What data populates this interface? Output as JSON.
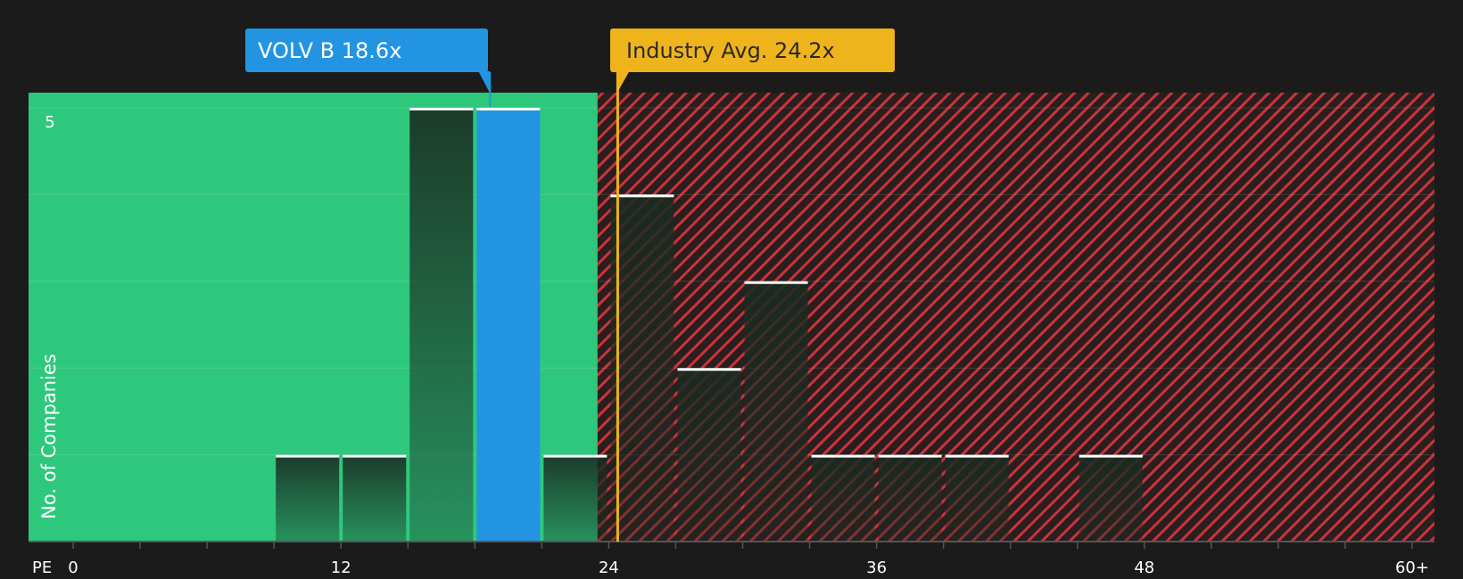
{
  "chart_data": {
    "type": "bar",
    "title": "",
    "xlabel": "PE",
    "ylabel": "No. of Companies",
    "xlim": [
      -2,
      61
    ],
    "ylim": [
      0,
      5
    ],
    "x_ticks": [
      {
        "value": 0,
        "label": "0"
      },
      {
        "value": 12,
        "label": "12"
      },
      {
        "value": 24,
        "label": "24"
      },
      {
        "value": 36,
        "label": "36"
      },
      {
        "value": 48,
        "label": "48"
      },
      {
        "value": 60,
        "label": "60+"
      }
    ],
    "y_ticks": [
      {
        "value": 5,
        "label": "5"
      }
    ],
    "bin_width": 3,
    "bins": [
      {
        "start": 9,
        "count": 1
      },
      {
        "start": 12,
        "count": 1
      },
      {
        "start": 15,
        "count": 5
      },
      {
        "start": 18,
        "count": 5,
        "highlight": true
      },
      {
        "start": 21,
        "count": 1
      },
      {
        "start": 24,
        "count": 4
      },
      {
        "start": 27,
        "count": 2
      },
      {
        "start": 30,
        "count": 3
      },
      {
        "start": 33,
        "count": 1
      },
      {
        "start": 36,
        "count": 1
      },
      {
        "start": 39,
        "count": 1
      },
      {
        "start": 45,
        "count": 1
      }
    ],
    "fair_zone_end": 23.5,
    "company": {
      "label": "VOLV B 18.6x",
      "value": 18.6
    },
    "industry": {
      "label": "Industry Avg. 24.2x",
      "value": 24.2
    }
  },
  "colors": {
    "background": "#1b1b1b",
    "fair": "#2ec87d",
    "expensive": "#2a1e1e",
    "hatch": "#c8353a",
    "company": "#2394e2",
    "industry": "#efb31c"
  }
}
